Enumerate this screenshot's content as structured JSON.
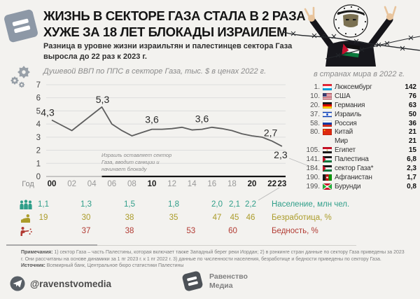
{
  "header": {
    "title_line1": "ЖИЗНЬ В СЕКТОРЕ ГАЗА СТАЛА В 2 РАЗА",
    "title_line2": "ХУЖЕ ЗА 18 ЛЕТ БЛОКАДЫ ИЗРАИЛЕМ",
    "subtitle_line1": "Разница в уровне жизни израильтян и палестинцев сектора Газа",
    "subtitle_line2": "выросла до 22 раз к 2023 г."
  },
  "chart_data": {
    "type": "line",
    "title": "Душевой ВВП по ППС в секторе Газа, тыс. $ в ценах 2022 г.",
    "x_axis_label": "Год",
    "x": [
      2000,
      2001,
      2002,
      2003,
      2004,
      2005,
      2006,
      2007,
      2008,
      2009,
      2010,
      2011,
      2012,
      2013,
      2014,
      2015,
      2016,
      2017,
      2018,
      2019,
      2020,
      2021,
      2022,
      2023
    ],
    "values": [
      4.3,
      3.9,
      3.5,
      4.1,
      4.7,
      5.3,
      4.0,
      3.5,
      3.1,
      3.35,
      3.6,
      3.6,
      3.65,
      3.75,
      3.55,
      3.6,
      3.75,
      3.65,
      3.5,
      3.25,
      3.1,
      3.0,
      2.7,
      2.3
    ],
    "ylim": [
      0,
      7
    ],
    "yticks": [
      0,
      1,
      2,
      3,
      4,
      5,
      6,
      7
    ],
    "grid": "horizontal",
    "line_color": "#5e5e5e",
    "x_ticks": [
      {
        "label": "00",
        "year": 2000,
        "bold": true
      },
      {
        "label": "02",
        "year": 2002,
        "bold": false
      },
      {
        "label": "04",
        "year": 2004,
        "bold": false
      },
      {
        "label": "06",
        "year": 2006,
        "bold": false
      },
      {
        "label": "08",
        "year": 2008,
        "bold": false
      },
      {
        "label": "10",
        "year": 2010,
        "bold": true
      },
      {
        "label": "12",
        "year": 2012,
        "bold": false
      },
      {
        "label": "14",
        "year": 2014,
        "bold": false
      },
      {
        "label": "16",
        "year": 2016,
        "bold": false
      },
      {
        "label": "18",
        "year": 2018,
        "bold": false
      },
      {
        "label": "20",
        "year": 2020,
        "bold": true
      },
      {
        "label": "22",
        "year": 2022,
        "bold": true
      },
      {
        "label": "23",
        "year": 2023,
        "bold": true
      }
    ],
    "point_labels": [
      {
        "year": 2000,
        "label": "4,3"
      },
      {
        "year": 2005,
        "label": "5,3"
      },
      {
        "year": 2010,
        "label": "3,6"
      },
      {
        "year": 2015,
        "label": "3,6"
      },
      {
        "year": 2022,
        "label": "2,7"
      },
      {
        "year": 2023,
        "label": "2,3"
      }
    ],
    "annotation_lines": [
      "Израиль оставляет сектор",
      "Газа, вводит санкции и",
      "начинает блокаду"
    ],
    "axis_highlight_from_year": 2005
  },
  "ranking": {
    "title": "в странах мира в 2022 г.",
    "rows": [
      {
        "rank": "1.",
        "flag": "luxembourg",
        "name": "Люксембург",
        "value": "142"
      },
      {
        "rank": "10.",
        "flag": "usa",
        "name": "США",
        "value": "76"
      },
      {
        "rank": "20.",
        "flag": "germany",
        "name": "Германия",
        "value": "63"
      },
      {
        "rank": "37.",
        "flag": "israel",
        "name": "Израиль",
        "value": "50"
      },
      {
        "rank": "58.",
        "flag": "russia",
        "name": "Россия",
        "value": "36"
      },
      {
        "rank": "80.",
        "flag": "china",
        "name": "Китай",
        "value": "21"
      },
      {
        "rank": "",
        "flag": "",
        "name": "Мир",
        "value": "21"
      },
      {
        "rank": "105.",
        "flag": "egypt",
        "name": "Египет",
        "value": "15"
      },
      {
        "rank": "141.",
        "flag": "palestine",
        "name": "Палестина",
        "value": "6,8"
      },
      {
        "rank": "184.",
        "flag": "palestine",
        "name": "сектор Газа*",
        "value": "2,3"
      },
      {
        "rank": "190.",
        "flag": "afghanistan",
        "name": "Афганистан",
        "value": "1,7"
      },
      {
        "rank": "199.",
        "flag": "burundi",
        "name": "Бурунди",
        "value": "0,8"
      }
    ]
  },
  "indicators": {
    "rows": [
      {
        "icon": "population-icon",
        "label": "Население, млн чел.",
        "color": "#2f9e89",
        "values": [
          {
            "col": 0,
            "v": "1,1"
          },
          {
            "col": 1,
            "v": "1,3"
          },
          {
            "col": 2,
            "v": "1,5"
          },
          {
            "col": 3,
            "v": "1,8"
          },
          {
            "col": 4,
            "v": "2,0"
          },
          {
            "col": 5,
            "v": "2,1"
          },
          {
            "col": 6,
            "v": "2,2"
          }
        ]
      },
      {
        "icon": "unemployment-icon",
        "label": "Безработица, %",
        "color": "#ab9c2a",
        "values": [
          {
            "col": 0,
            "v": "19"
          },
          {
            "col": 1,
            "v": "30"
          },
          {
            "col": 2,
            "v": "38"
          },
          {
            "col": 3,
            "v": "35"
          },
          {
            "col": 4,
            "v": "47"
          },
          {
            "col": 5,
            "v": "45"
          },
          {
            "col": 6,
            "v": "46"
          }
        ]
      },
      {
        "icon": "poverty-icon",
        "label": "Бедность, %",
        "color": "#b23b33",
        "values": [
          {
            "col": 1,
            "v": "37"
          },
          {
            "col": 2,
            "v": "38"
          },
          {
            "col": 3.4,
            "v": "53"
          },
          {
            "col": 4.9,
            "v": "60"
          }
        ]
      }
    ]
  },
  "footer": {
    "notes_label": "Примечания:",
    "notes": "1) сектор Газа – часть Палестины, которая включает также Западный берег реки Иордан; 2) в рэнкинге стран данные по сектору Газа приведены за 2023 г. Они рассчитаны на основе динамики за 1 пг 2023 г. к 1 пг 2022 г. 3) данные по численности населения, безработице и бедности приведены по сектору Газа.",
    "source_label": "Источник:",
    "source": "Всемирный банк, Центральное бюро статистики Палестины",
    "telegram": "@ravenstvomedia",
    "brand_line1": "Равенство",
    "brand_line2": "Медиа"
  }
}
